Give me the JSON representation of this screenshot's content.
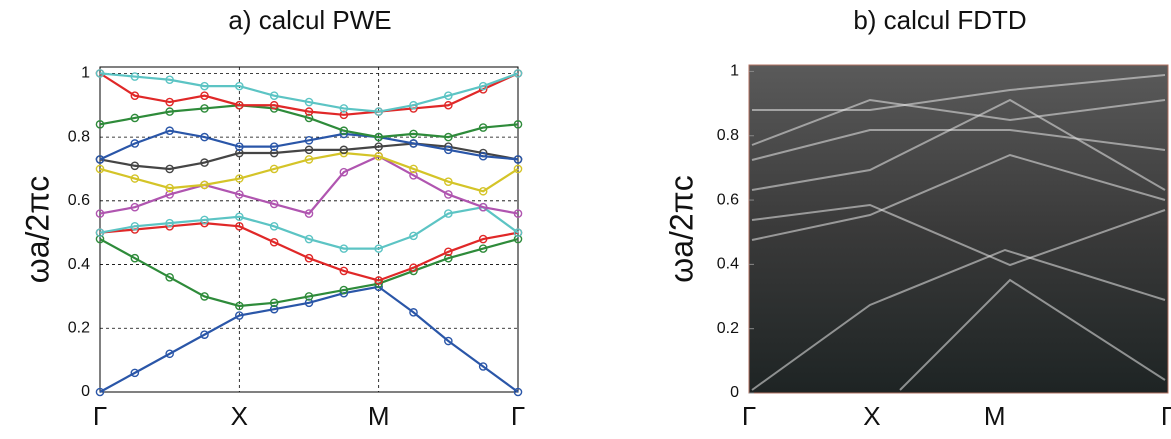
{
  "chart_data": [
    {
      "type": "line",
      "title": "a) calcul PWE",
      "ylabel": "ωa/2πc",
      "x": [
        0,
        0.25,
        0.5,
        0.75,
        1,
        1.25,
        1.5,
        1.75,
        2,
        2.25,
        2.5,
        2.75,
        3
      ],
      "xlim": [
        0,
        3
      ],
      "xticks": [
        {
          "value": 0,
          "label": "Γ"
        },
        {
          "value": 1,
          "label": "X"
        },
        {
          "value": 2,
          "label": "M"
        },
        {
          "value": 3,
          "label": "Γ"
        }
      ],
      "ylim": [
        0,
        1.02
      ],
      "yticks": [
        0,
        0.2,
        0.4,
        0.6,
        0.8,
        1
      ],
      "grid": true,
      "series": [
        {
          "color": "#2a56a8",
          "values": [
            0,
            0.06,
            0.12,
            0.18,
            0.24,
            0.26,
            0.28,
            0.31,
            0.33,
            0.25,
            0.16,
            0.08,
            0
          ]
        },
        {
          "color": "#2e8b3a",
          "values": [
            0.48,
            0.42,
            0.36,
            0.3,
            0.27,
            0.28,
            0.3,
            0.32,
            0.34,
            0.38,
            0.42,
            0.45,
            0.48
          ]
        },
        {
          "color": "#e02828",
          "values": [
            0.5,
            0.51,
            0.52,
            0.53,
            0.52,
            0.47,
            0.42,
            0.38,
            0.35,
            0.39,
            0.44,
            0.48,
            0.5
          ]
        },
        {
          "color": "#5cc4c4",
          "values": [
            0.5,
            0.52,
            0.53,
            0.54,
            0.55,
            0.52,
            0.48,
            0.45,
            0.45,
            0.49,
            0.56,
            0.58,
            0.5
          ]
        },
        {
          "color": "#b055b0",
          "values": [
            0.56,
            0.58,
            0.62,
            0.65,
            0.62,
            0.59,
            0.56,
            0.69,
            0.74,
            0.68,
            0.62,
            0.58,
            0.56
          ]
        },
        {
          "color": "#d4c428",
          "values": [
            0.7,
            0.67,
            0.64,
            0.65,
            0.67,
            0.7,
            0.73,
            0.75,
            0.74,
            0.7,
            0.66,
            0.63,
            0.7
          ]
        },
        {
          "color": "#454545",
          "values": [
            0.73,
            0.71,
            0.7,
            0.72,
            0.75,
            0.75,
            0.76,
            0.76,
            0.77,
            0.78,
            0.77,
            0.75,
            0.73
          ]
        },
        {
          "color": "#2a56a8",
          "values": [
            0.73,
            0.78,
            0.82,
            0.8,
            0.77,
            0.77,
            0.79,
            0.81,
            0.8,
            0.78,
            0.76,
            0.74,
            0.73
          ]
        },
        {
          "color": "#2e8b3a",
          "values": [
            0.84,
            0.86,
            0.88,
            0.89,
            0.9,
            0.89,
            0.86,
            0.82,
            0.8,
            0.81,
            0.8,
            0.83,
            0.84
          ]
        },
        {
          "color": "#e02828",
          "values": [
            1,
            0.93,
            0.91,
            0.93,
            0.9,
            0.9,
            0.88,
            0.87,
            0.88,
            0.89,
            0.9,
            0.95,
            1
          ]
        },
        {
          "color": "#5cc4c4",
          "values": [
            1,
            0.99,
            0.98,
            0.96,
            0.96,
            0.93,
            0.91,
            0.89,
            0.88,
            0.9,
            0.93,
            0.96,
            1
          ]
        }
      ]
    },
    {
      "type": "image",
      "title": "b) calcul FDTD",
      "ylabel": "ωa/2πc",
      "xlim": [
        0,
        3.41
      ],
      "xticks": [
        {
          "value": 0,
          "label": "Γ"
        },
        {
          "value": 1,
          "label": "X"
        },
        {
          "value": 2,
          "label": "M"
        },
        {
          "value": 3.41,
          "label": "Γ"
        }
      ],
      "ylim": [
        0,
        1.02
      ],
      "yticks": [
        0,
        0.2,
        0.4,
        0.6,
        0.8,
        1
      ]
    }
  ]
}
